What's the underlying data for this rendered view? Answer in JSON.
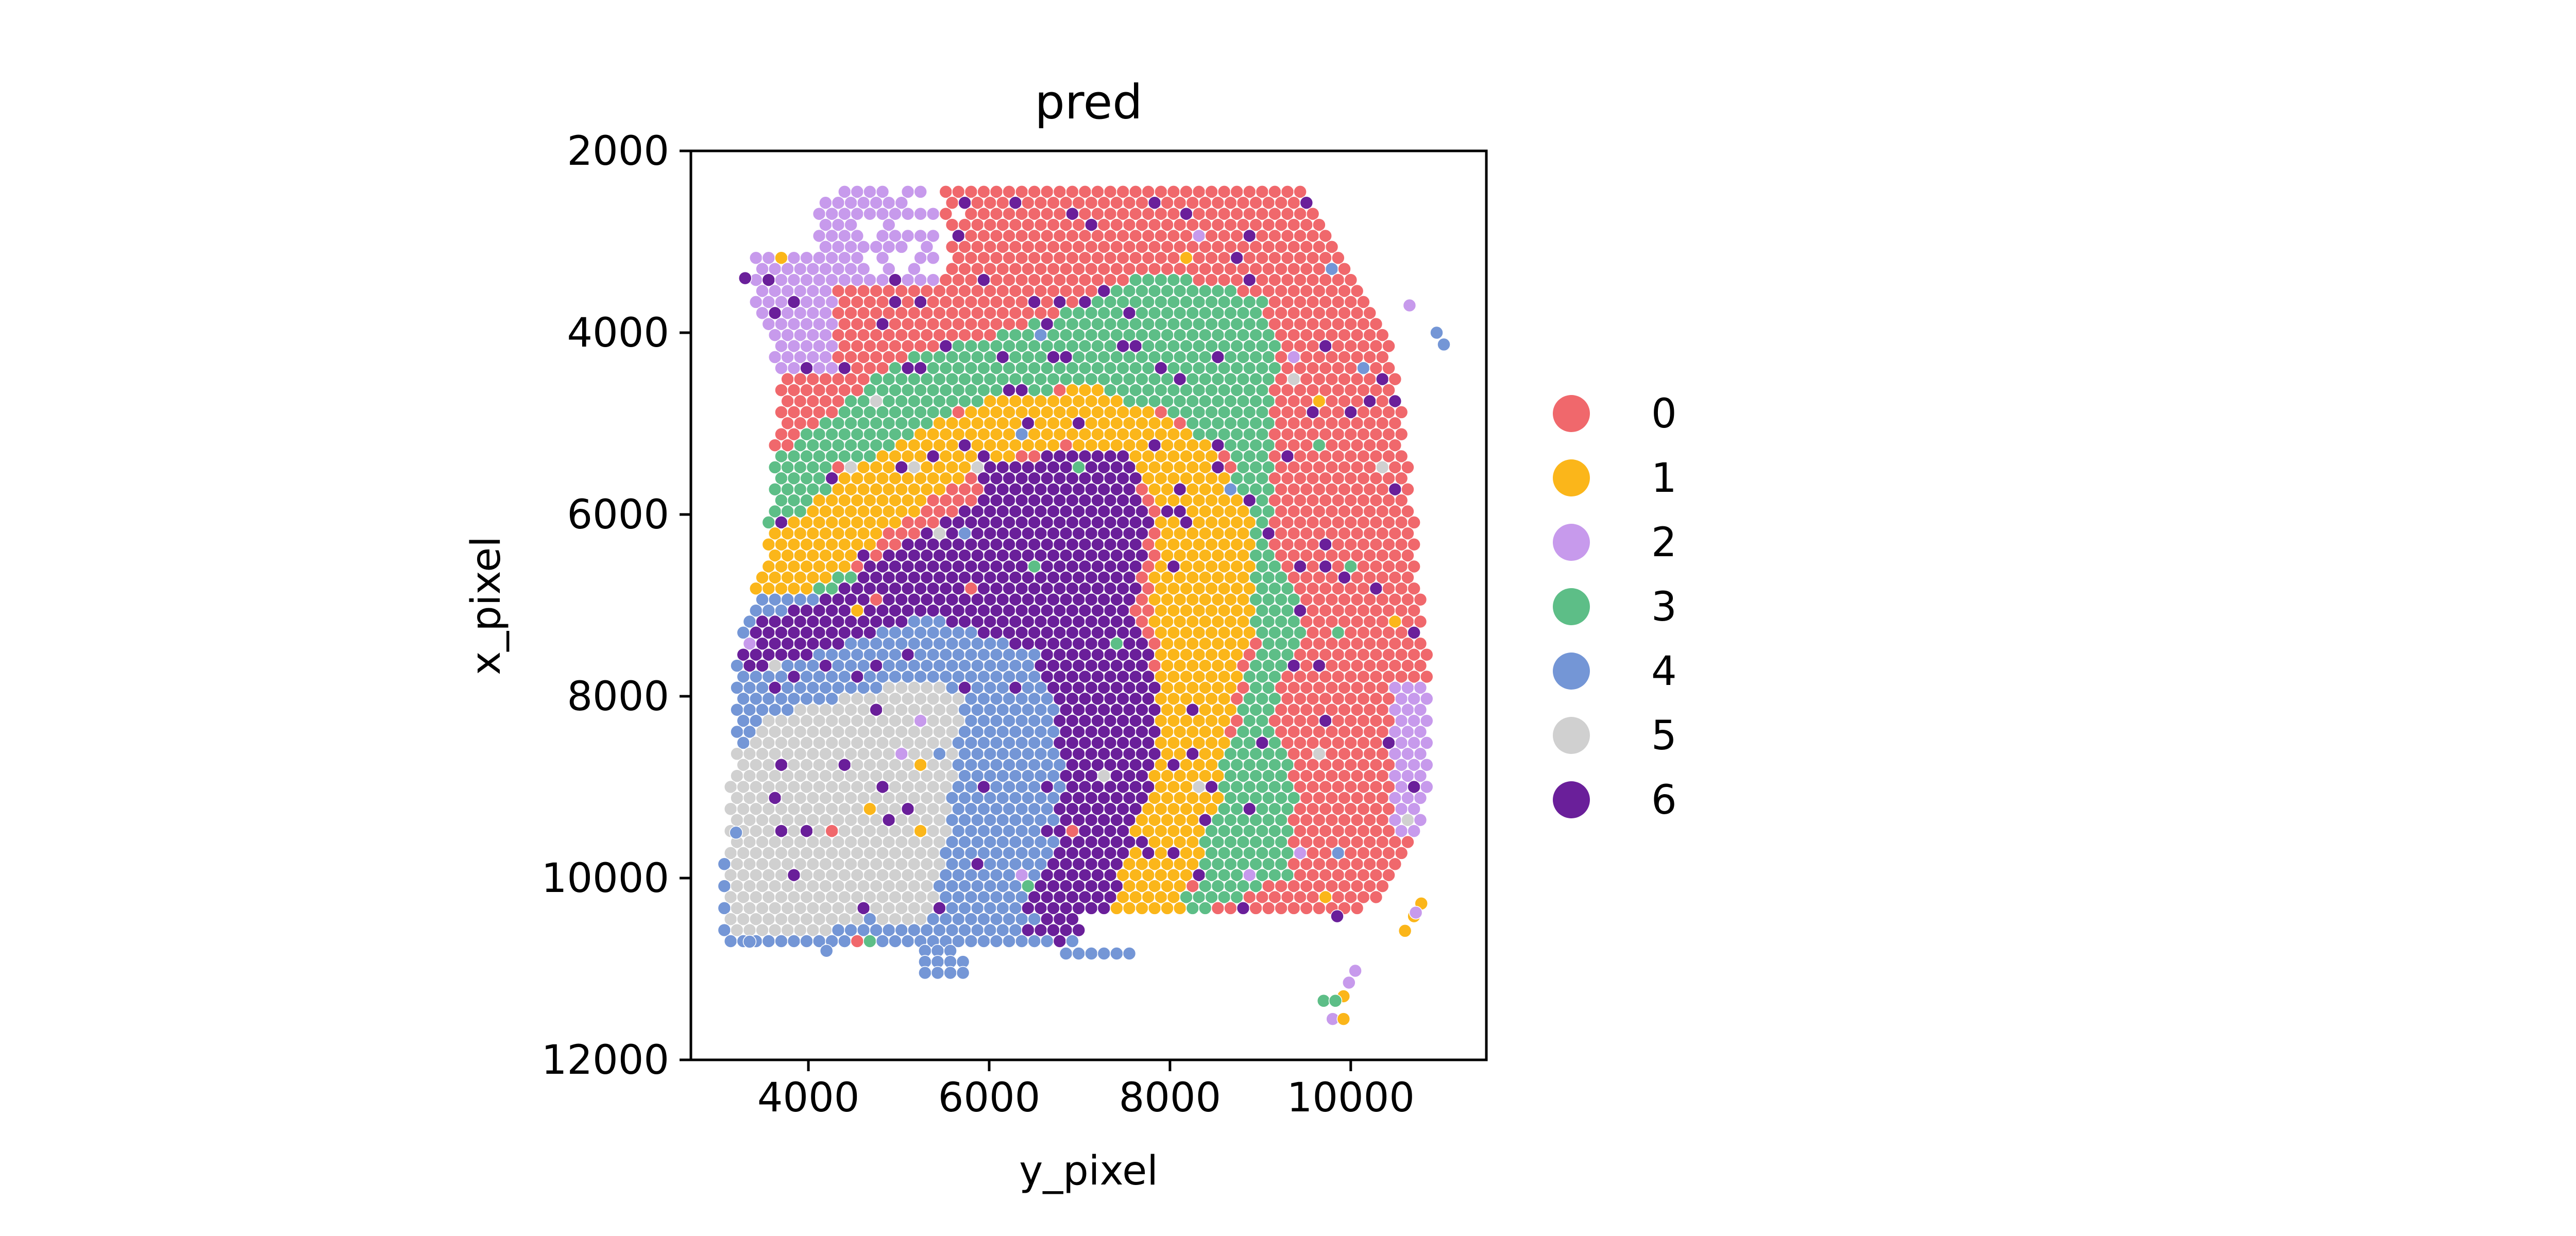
{
  "chart_data": {
    "type": "scatter",
    "title": "pred",
    "xlabel": "y_pixel",
    "ylabel": "x_pixel",
    "xlim": [
      2700,
      11500
    ],
    "ylim": [
      12000,
      2000
    ],
    "y_inverted": true,
    "xticks": [
      4000,
      6000,
      8000,
      10000
    ],
    "yticks": [
      2000,
      4000,
      6000,
      8000,
      10000,
      12000
    ],
    "xtick_labels": [
      "4000",
      "6000",
      "8000",
      "10000"
    ],
    "ytick_labels": [
      "2000",
      "4000",
      "6000",
      "8000",
      "10000",
      "12000"
    ],
    "legend_position": "right-outside",
    "grid": false,
    "spot_pitch": 140,
    "clusters": [
      {
        "name": "0",
        "color": "#F0686C"
      },
      {
        "name": "1",
        "color": "#FBB61A"
      },
      {
        "name": "2",
        "color": "#C79AEC"
      },
      {
        "name": "3",
        "color": "#5DBE87"
      },
      {
        "name": "4",
        "color": "#7496D6"
      },
      {
        "name": "5",
        "color": "#D0D0D0"
      },
      {
        "name": "6",
        "color": "#6A1F9A"
      }
    ],
    "outlier_points": [
      {
        "y": 10650,
        "x": 3700,
        "cluster": "2"
      },
      {
        "y": 10950,
        "x": 4000,
        "cluster": "4"
      },
      {
        "y": 11030,
        "x": 4130,
        "cluster": "4"
      },
      {
        "y": 10780,
        "x": 10280,
        "cluster": "1"
      },
      {
        "y": 10700,
        "x": 10420,
        "cluster": "1"
      },
      {
        "y": 10600,
        "x": 10580,
        "cluster": "1"
      },
      {
        "y": 10720,
        "x": 10380,
        "cluster": "2"
      },
      {
        "y": 9850,
        "x": 10420,
        "cluster": "6"
      },
      {
        "y": 10050,
        "x": 11020,
        "cluster": "2"
      },
      {
        "y": 9980,
        "x": 11150,
        "cluster": "2"
      },
      {
        "y": 9920,
        "x": 11300,
        "cluster": "1"
      },
      {
        "y": 9700,
        "x": 11350,
        "cluster": "3"
      },
      {
        "y": 9830,
        "x": 11350,
        "cluster": "3"
      },
      {
        "y": 9800,
        "x": 11550,
        "cluster": "2"
      },
      {
        "y": 9920,
        "x": 11550,
        "cluster": "1"
      },
      {
        "y": 3300,
        "x": 3400,
        "cluster": "6"
      },
      {
        "y": 4200,
        "x": 10800,
        "cluster": "4"
      },
      {
        "y": 3350,
        "x": 10700,
        "cluster": "4"
      },
      {
        "y": 3200,
        "x": 9500,
        "cluster": "4"
      }
    ]
  }
}
